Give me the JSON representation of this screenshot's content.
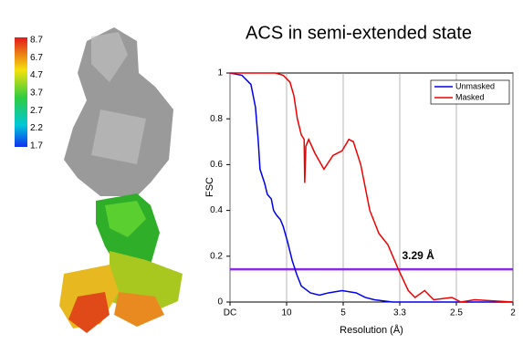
{
  "colorbar": {
    "labels": [
      "8.7",
      "6.7",
      "4.7",
      "3.7",
      "2.7",
      "2.2",
      "1.7"
    ]
  },
  "chart_data": {
    "type": "line",
    "title": "ACS in semi-extended state",
    "x_label": "Resolution (Å)",
    "y_label": "FSC",
    "xlim": [
      0,
      0.5
    ],
    "ylim": [
      0,
      1
    ],
    "xticks": [
      {
        "value": 0,
        "label": "DC"
      },
      {
        "value": 0.1,
        "label": "10"
      },
      {
        "value": 0.2,
        "label": "5"
      },
      {
        "value": 0.3,
        "label": "3.3"
      },
      {
        "value": 0.4,
        "label": "2.5"
      },
      {
        "value": 0.5,
        "label": "2"
      }
    ],
    "yticks": [
      0,
      0.2,
      0.4,
      0.6,
      0.8,
      1
    ],
    "grid": "x",
    "legend": "upper right",
    "threshold": 0.143,
    "threshold_color": "#8a2be2",
    "annotation": {
      "text": "3.29 Å",
      "x": 0.304,
      "y": 0.2
    },
    "series": [
      {
        "name": "Unmasked",
        "color": "#0000ee",
        "x": [
          0,
          0.021,
          0.037,
          0.045,
          0.05,
          0.053,
          0.061,
          0.066,
          0.073,
          0.077,
          0.082,
          0.089,
          0.094,
          0.102,
          0.11,
          0.118,
          0.126,
          0.142,
          0.158,
          0.174,
          0.198,
          0.223,
          0.239,
          0.255,
          0.287,
          0.5
        ],
        "values": [
          1,
          0.99,
          0.95,
          0.85,
          0.7,
          0.58,
          0.52,
          0.47,
          0.45,
          0.4,
          0.38,
          0.36,
          0.33,
          0.26,
          0.18,
          0.12,
          0.07,
          0.04,
          0.03,
          0.04,
          0.05,
          0.04,
          0.02,
          0.01,
          0,
          0
        ]
      },
      {
        "name": "Masked",
        "color": "#ee0000",
        "x": [
          0,
          0.08,
          0.094,
          0.106,
          0.113,
          0.119,
          0.126,
          0.131,
          0.132,
          0.134,
          0.139,
          0.15,
          0.166,
          0.182,
          0.198,
          0.21,
          0.218,
          0.231,
          0.247,
          0.263,
          0.279,
          0.298,
          0.315,
          0.327,
          0.344,
          0.36,
          0.392,
          0.408,
          0.432,
          0.5
        ],
        "values": [
          1,
          1,
          0.99,
          0.96,
          0.9,
          0.8,
          0.73,
          0.71,
          0.52,
          0.68,
          0.71,
          0.65,
          0.58,
          0.64,
          0.66,
          0.71,
          0.7,
          0.6,
          0.4,
          0.3,
          0.25,
          0.14,
          0.05,
          0.02,
          0.05,
          0.01,
          0.02,
          0,
          0.01,
          0
        ]
      }
    ]
  }
}
